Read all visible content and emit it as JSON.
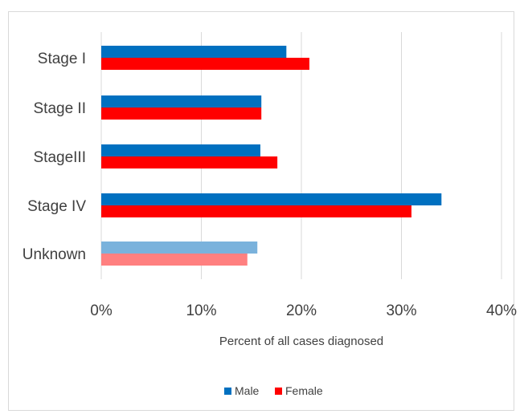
{
  "chart_data": {
    "type": "bar",
    "orientation": "horizontal",
    "categories": [
      "Stage I",
      "Stage II",
      "StageIII",
      "Stage IV",
      "Unknown"
    ],
    "series": [
      {
        "name": "Male",
        "values": [
          18.5,
          16.0,
          15.9,
          34.0,
          15.6
        ],
        "color": "#0070c0",
        "faded_color": "#7ab2dc"
      },
      {
        "name": "Female",
        "values": [
          20.8,
          16.0,
          17.6,
          31.0,
          14.6
        ],
        "color": "#ff0000",
        "faded_color": "#ff8080"
      }
    ],
    "faded_categories": [
      "Unknown"
    ],
    "xlim": [
      0,
      40
    ],
    "xticks": [
      0,
      10,
      20,
      30,
      40
    ],
    "xtick_labels": [
      "0%",
      "10%",
      "20%",
      "30%",
      "40%"
    ],
    "xlabel": "Percent of all cases diagnosed",
    "ylabel": "",
    "title": "",
    "grid": true,
    "legend_position": "bottom",
    "gridline_color": "#d9d9d9"
  }
}
